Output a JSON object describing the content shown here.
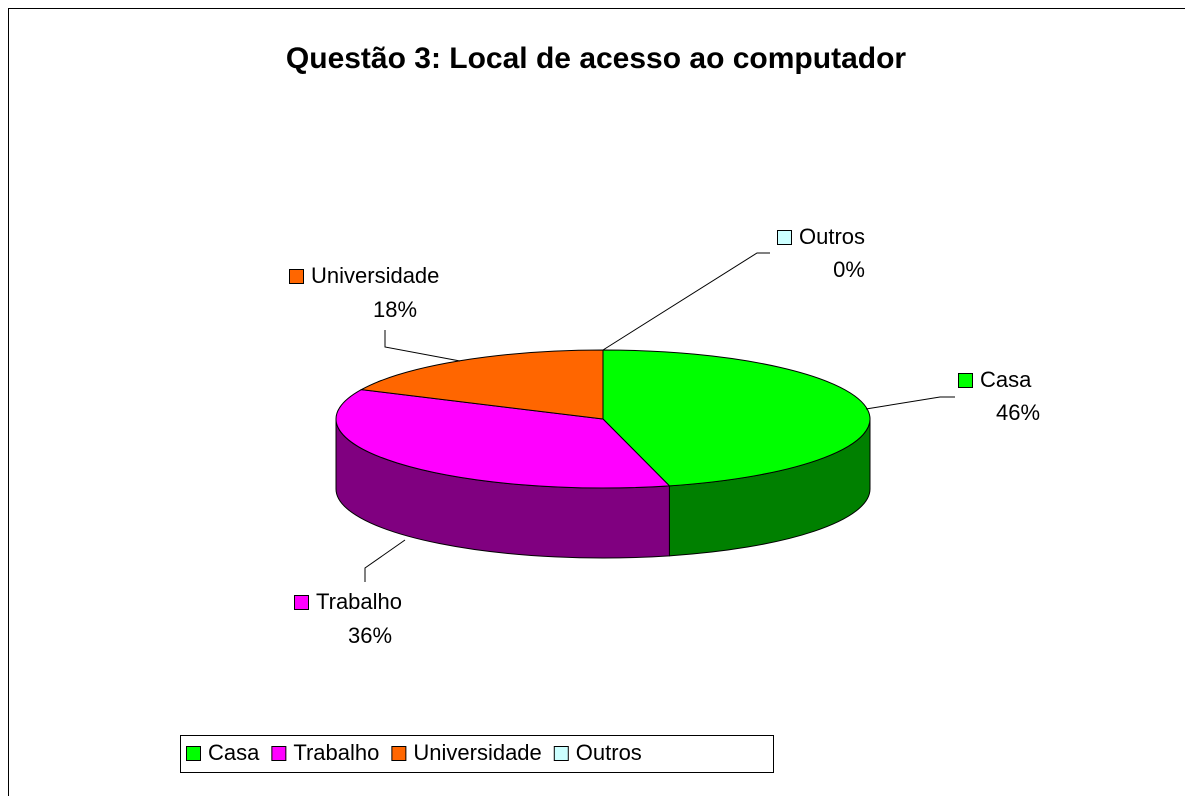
{
  "chart_data": {
    "type": "pie",
    "title": "Questão 3: Local de acesso ao computador",
    "categories": [
      "Casa",
      "Trabalho",
      "Universidade",
      "Outros"
    ],
    "values": [
      46,
      36,
      18,
      0
    ],
    "value_labels": [
      "46%",
      "36%",
      "18%",
      "0%"
    ],
    "colors": [
      "#00ff00",
      "#ff00ff",
      "#ff6600",
      "#ccffff"
    ],
    "side_colors": [
      "#008000",
      "#800080",
      "#993300",
      "#99cccc"
    ],
    "legend": "bottom"
  }
}
